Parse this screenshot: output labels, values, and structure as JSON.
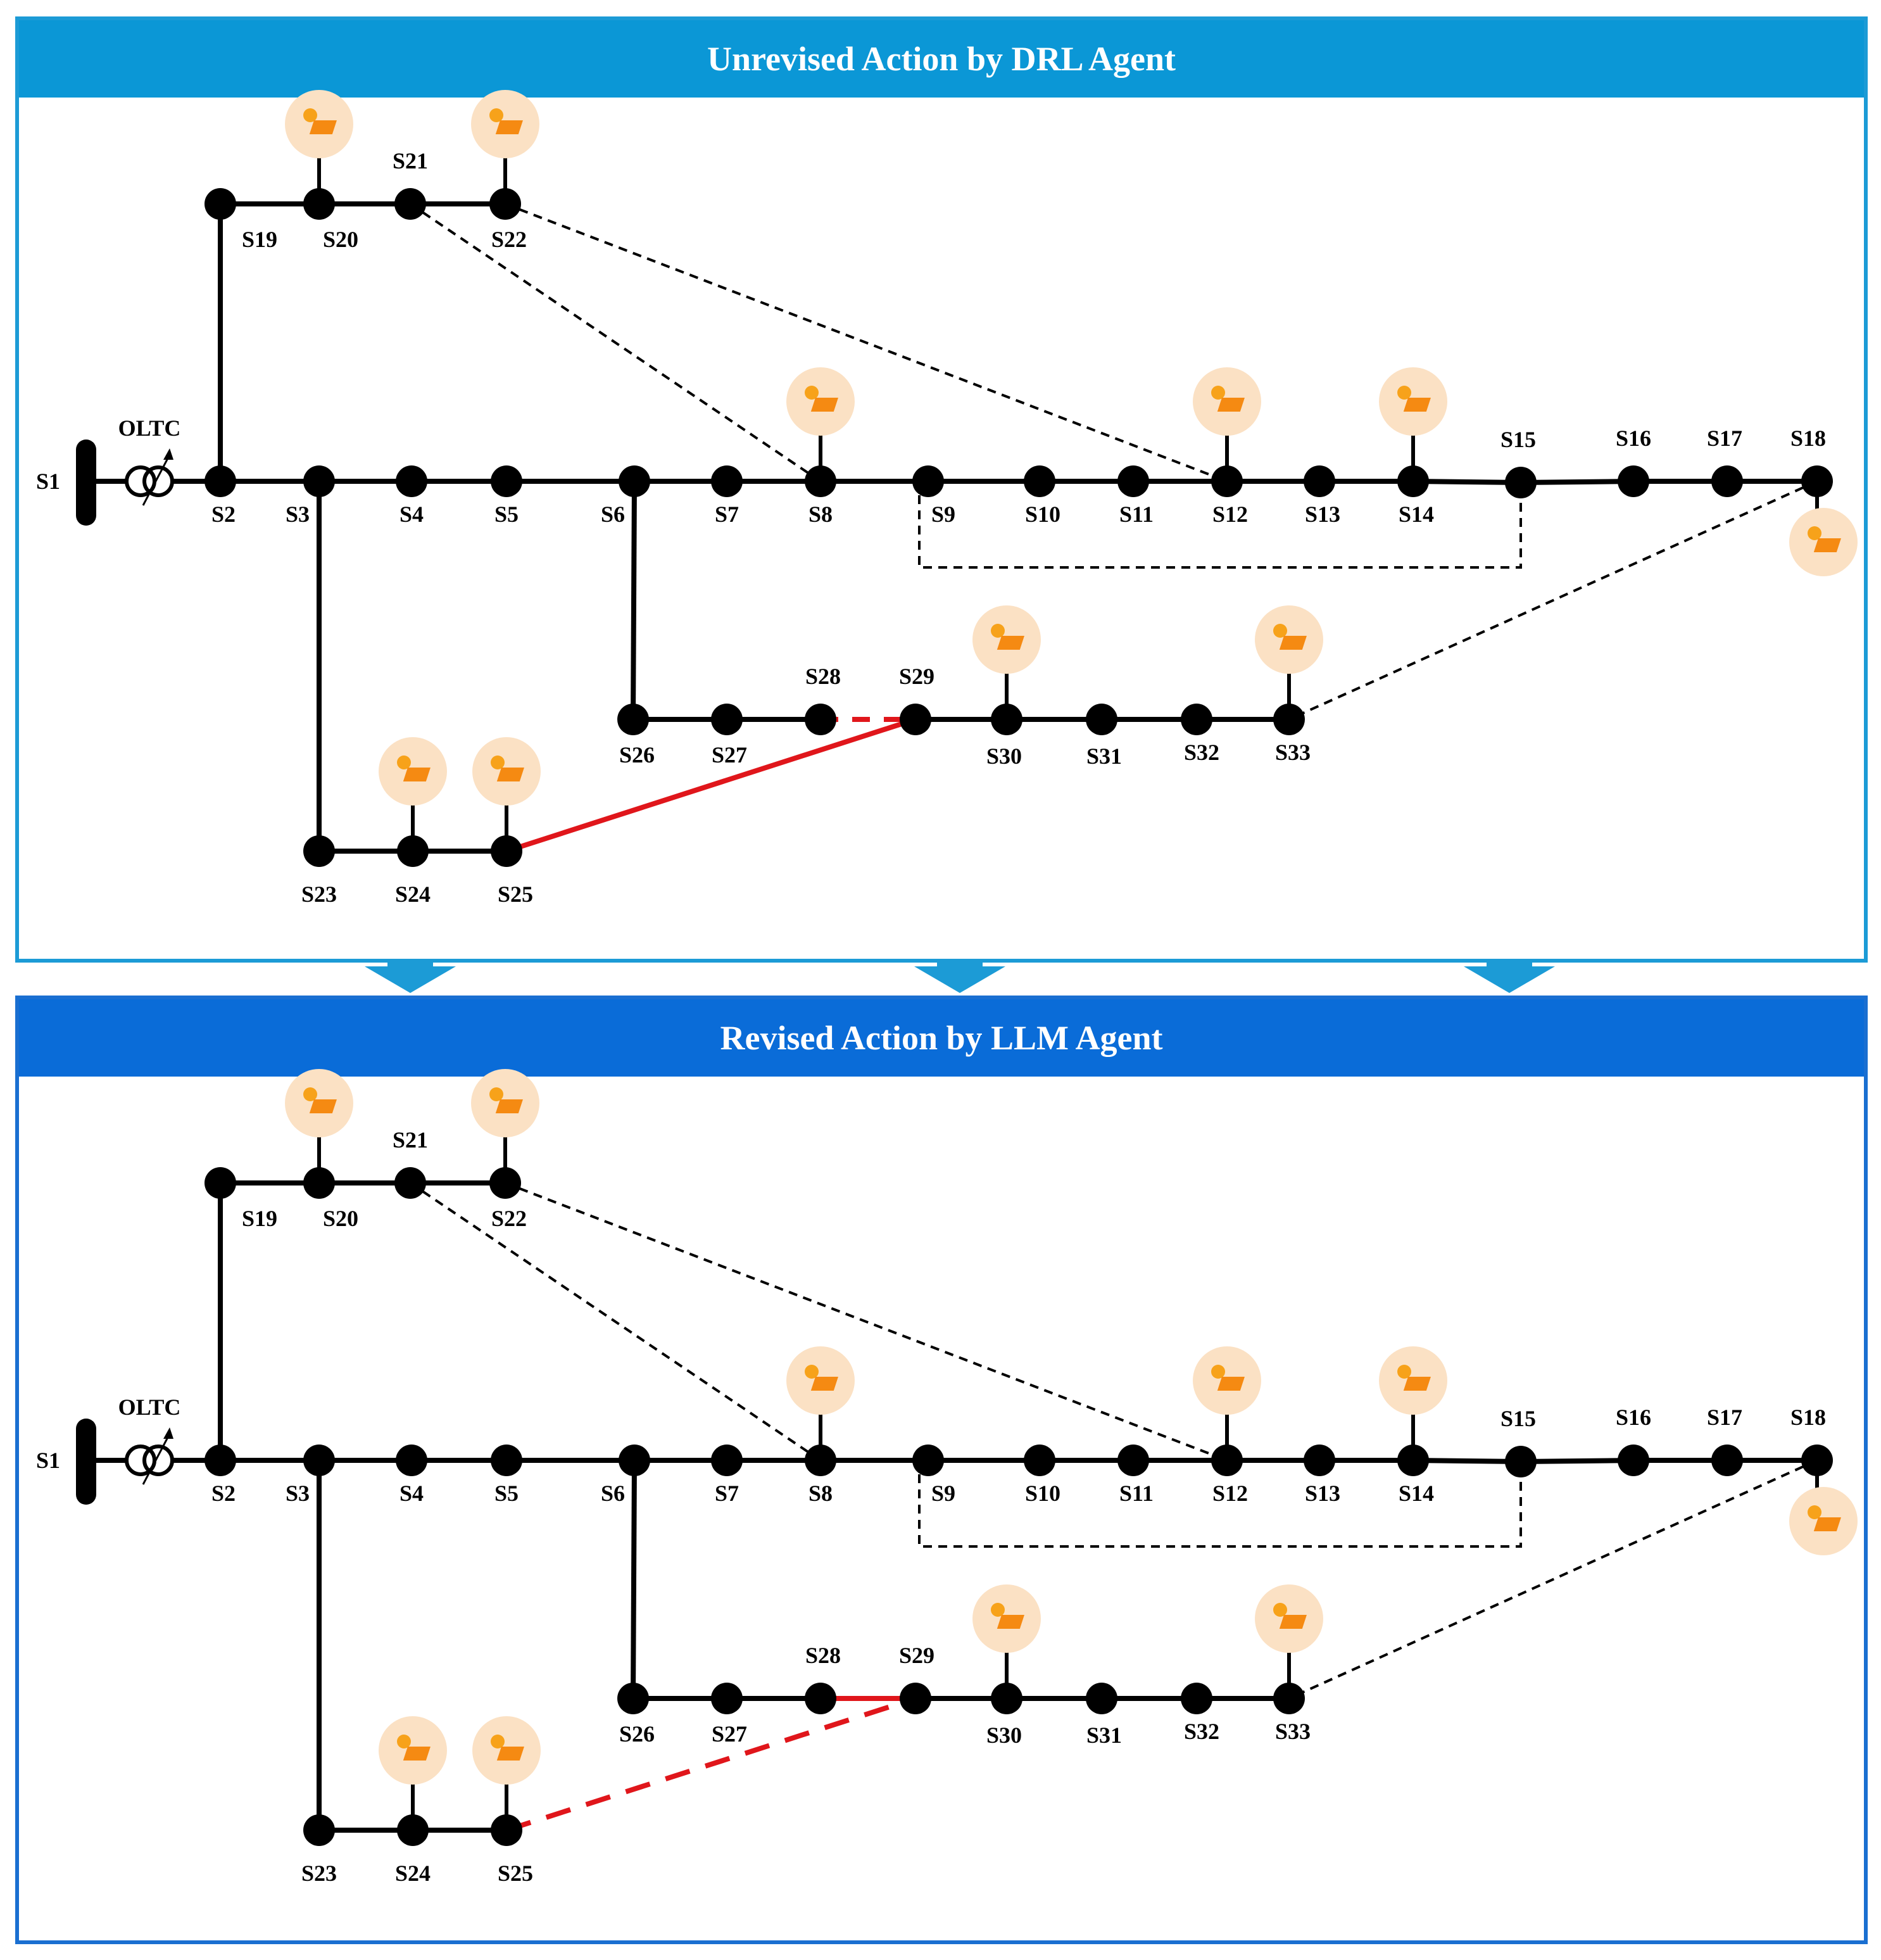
{
  "panels": [
    {
      "title": "Unrevised Action by DRL Agent"
    },
    {
      "title": "Revised Action by LLM Agent"
    }
  ],
  "oltc_label": "OLTC",
  "buses": {
    "S1": "S1",
    "S2": "S2",
    "S3": "S3",
    "S4": "S4",
    "S5": "S5",
    "S6": "S6",
    "S7": "S7",
    "S8": "S8",
    "S9": "S9",
    "S10": "S10",
    "S11": "S11",
    "S12": "S12",
    "S13": "S13",
    "S14": "S14",
    "S15": "S15",
    "S16": "S16",
    "S17": "S17",
    "S18": "S18",
    "S19": "S19",
    "S20": "S20",
    "S21": "S21",
    "S22": "S22",
    "S23": "S23",
    "S24": "S24",
    "S25": "S25",
    "S26": "S26",
    "S27": "S27",
    "S28": "S28",
    "S29": "S29",
    "S30": "S30",
    "S31": "S31",
    "S32": "S32",
    "S33": "S33"
  },
  "pv_buses": [
    "S20",
    "S22",
    "S8",
    "S12",
    "S14",
    "S18",
    "S24",
    "S25",
    "S30",
    "S33"
  ],
  "closed_lines": [
    [
      "S2",
      "S3"
    ],
    [
      "S3",
      "S4"
    ],
    [
      "S4",
      "S5"
    ],
    [
      "S5",
      "S6"
    ],
    [
      "S6",
      "S7"
    ],
    [
      "S7",
      "S8"
    ],
    [
      "S8",
      "S9"
    ],
    [
      "S9",
      "S10"
    ],
    [
      "S10",
      "S11"
    ],
    [
      "S11",
      "S12"
    ],
    [
      "S12",
      "S13"
    ],
    [
      "S13",
      "S14"
    ],
    [
      "S14",
      "S15"
    ],
    [
      "S15",
      "S16"
    ],
    [
      "S16",
      "S17"
    ],
    [
      "S17",
      "S18"
    ],
    [
      "S2",
      "S19"
    ],
    [
      "S19",
      "S20"
    ],
    [
      "S20",
      "S21"
    ],
    [
      "S21",
      "S22"
    ],
    [
      "S3",
      "S23"
    ],
    [
      "S23",
      "S24"
    ],
    [
      "S24",
      "S25"
    ],
    [
      "S6",
      "S26"
    ],
    [
      "S26",
      "S27"
    ],
    [
      "S27",
      "S28"
    ],
    [
      "S29",
      "S30"
    ],
    [
      "S30",
      "S31"
    ],
    [
      "S31",
      "S32"
    ],
    [
      "S32",
      "S33"
    ]
  ],
  "tie_lines": [
    [
      "S21",
      "S8"
    ],
    [
      "S22",
      "S12"
    ],
    [
      "S9",
      "S15"
    ],
    [
      "S18",
      "S33"
    ]
  ],
  "switch_actions": [
    {
      "s28_s29": "opened",
      "s25_s29": "closed"
    },
    {
      "s28_s29": "closed",
      "s25_s29": "opened"
    }
  ]
}
